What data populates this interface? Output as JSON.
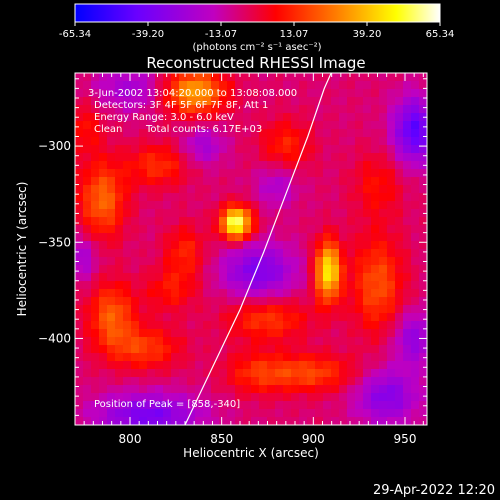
{
  "chart_data": {
    "type": "heatmap",
    "title": "Reconstructed RHESSI Image",
    "colorbar": {
      "ticks": [
        "-65.34",
        "-39.20",
        "-13.07",
        "13.07",
        "39.20",
        "65.34"
      ],
      "unit_label": "(photons cm⁻² s⁻¹ asec⁻²)",
      "range": [
        -65.34,
        65.34
      ],
      "colormap": [
        "#0000ff",
        "#6a00ff",
        "#c000c0",
        "#ff0000",
        "#ff8000",
        "#ffff00",
        "#ffffff"
      ]
    },
    "annotations": {
      "time": "3-Jun-2002 13:04:20.000 to 13:08:08.000",
      "detectors": "Detectors: 3F 4F 5F 6F 7F 8F, Att 1",
      "energy": "Energy Range: 3.0 - 6.0 keV",
      "clean": "Clean",
      "counts": "Total counts: 6.17E+03",
      "peak": "Position of Peak = [858,-340]"
    },
    "xlabel": "Heliocentric X (arcsec)",
    "ylabel": "Heliocentric Y (arcsec)",
    "xlim": [
      770,
      962
    ],
    "ylim": [
      -445,
      -262
    ],
    "xticks": [
      800,
      850,
      900,
      950
    ],
    "yticks": [
      -300,
      -350,
      -400
    ],
    "peak": {
      "x": 858,
      "y": -340
    },
    "sources": [
      {
        "x": 858,
        "y": -340,
        "sx": 6,
        "sy": 6,
        "amp": 65
      },
      {
        "x": 908,
        "y": -365,
        "sx": 5,
        "sy": 11,
        "amp": 55
      },
      {
        "x": 835,
        "y": -272,
        "sx": 12,
        "sy": 8,
        "amp": 42
      },
      {
        "x": 785,
        "y": -328,
        "sx": 9,
        "sy": 14,
        "amp": 30
      },
      {
        "x": 790,
        "y": -388,
        "sx": 9,
        "sy": 12,
        "amp": 28
      },
      {
        "x": 808,
        "y": -405,
        "sx": 14,
        "sy": 8,
        "amp": 22
      },
      {
        "x": 875,
        "y": -390,
        "sx": 16,
        "sy": 8,
        "amp": 22
      },
      {
        "x": 898,
        "y": -418,
        "sx": 18,
        "sy": 7,
        "amp": 24
      },
      {
        "x": 935,
        "y": -372,
        "sx": 10,
        "sy": 18,
        "amp": 26
      },
      {
        "x": 935,
        "y": -320,
        "sx": 10,
        "sy": 12,
        "amp": 14
      },
      {
        "x": 885,
        "y": -300,
        "sx": 10,
        "sy": 10,
        "amp": 18
      },
      {
        "x": 830,
        "y": -355,
        "sx": 8,
        "sy": 10,
        "amp": 18
      },
      {
        "x": 815,
        "y": -310,
        "sx": 12,
        "sy": 8,
        "amp": 20
      },
      {
        "x": 775,
        "y": -290,
        "sx": 8,
        "sy": 10,
        "amp": 14
      },
      {
        "x": 868,
        "y": -418,
        "sx": 12,
        "sy": 8,
        "amp": 16
      },
      {
        "x": 822,
        "y": -375,
        "sx": 10,
        "sy": 8,
        "amp": 15
      },
      {
        "x": 955,
        "y": -292,
        "sx": 8,
        "sy": 12,
        "amp": -40
      },
      {
        "x": 870,
        "y": -365,
        "sx": 14,
        "sy": 10,
        "amp": -30
      },
      {
        "x": 810,
        "y": -440,
        "sx": 20,
        "sy": 8,
        "amp": -32
      },
      {
        "x": 940,
        "y": -430,
        "sx": 12,
        "sy": 10,
        "amp": -28
      },
      {
        "x": 800,
        "y": -270,
        "sx": 14,
        "sy": 8,
        "amp": -18
      },
      {
        "x": 955,
        "y": -400,
        "sx": 8,
        "sy": 10,
        "amp": -24
      },
      {
        "x": 840,
        "y": -300,
        "sx": 8,
        "sy": 7,
        "amp": -18
      },
      {
        "x": 880,
        "y": -320,
        "sx": 8,
        "sy": 8,
        "amp": -16
      },
      {
        "x": 775,
        "y": -358,
        "sx": 5,
        "sy": 8,
        "amp": -18
      }
    ],
    "limb_curve": {
      "x": [
        830,
        845,
        860,
        873,
        885,
        897,
        906,
        913
      ],
      "y": [
        -445,
        -415,
        -385,
        -355,
        -325,
        -295,
        -270,
        -255
      ]
    }
  },
  "timestamp": "29-Apr-2022 12:20"
}
